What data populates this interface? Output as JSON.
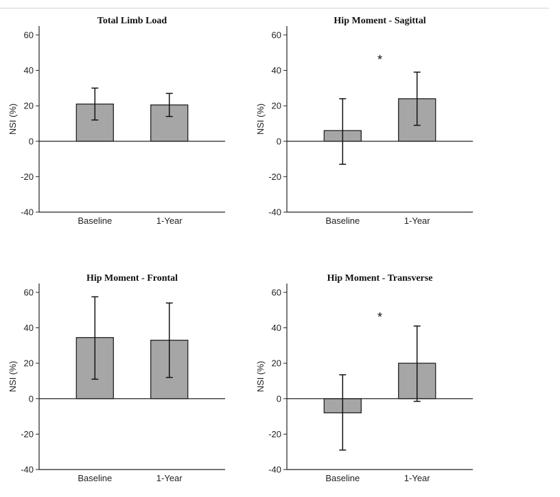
{
  "chart_data": [
    {
      "type": "bar",
      "title": "Total Limb Load",
      "ylabel": "NSI (%)",
      "xlabel": "",
      "categories": [
        "Baseline",
        "1-Year"
      ],
      "values": [
        21,
        20.5
      ],
      "error_low": [
        12,
        14
      ],
      "error_high": [
        30,
        27
      ],
      "ylim": [
        -40,
        65
      ],
      "yticks": [
        60,
        40,
        20,
        0,
        -20,
        -40
      ],
      "annotation": "",
      "colors": {
        "bar": "#a6a6a6",
        "edge": "#222222"
      }
    },
    {
      "type": "bar",
      "title": "Hip Moment - Sagittal",
      "ylabel": "NSI (%)",
      "xlabel": "",
      "categories": [
        "Baseline",
        "1-Year"
      ],
      "values": [
        6,
        24
      ],
      "error_low": [
        -13,
        9
      ],
      "error_high": [
        24,
        39
      ],
      "ylim": [
        -40,
        65
      ],
      "yticks": [
        60,
        40,
        20,
        0,
        -20,
        -40
      ],
      "annotation": "*",
      "annotation_y": 46,
      "colors": {
        "bar": "#a6a6a6",
        "edge": "#222222"
      }
    },
    {
      "type": "bar",
      "title": "Hip Moment - Frontal",
      "ylabel": "NSI (%)",
      "xlabel": "",
      "categories": [
        "Baseline",
        "1-Year"
      ],
      "values": [
        34.5,
        33
      ],
      "error_low": [
        11,
        12
      ],
      "error_high": [
        57.5,
        54
      ],
      "ylim": [
        -40,
        65
      ],
      "yticks": [
        60,
        40,
        20,
        0,
        -20,
        -40
      ],
      "annotation": "",
      "colors": {
        "bar": "#a6a6a6",
        "edge": "#222222"
      }
    },
    {
      "type": "bar",
      "title": "Hip Moment - Transverse",
      "ylabel": "NSI (%)",
      "xlabel": "",
      "categories": [
        "Baseline",
        "1-Year"
      ],
      "values": [
        -8,
        20
      ],
      "error_low": [
        -29,
        -1.5
      ],
      "error_high": [
        13.5,
        41
      ],
      "ylim": [
        -40,
        65
      ],
      "yticks": [
        60,
        40,
        20,
        0,
        -20,
        -40
      ],
      "annotation": "*",
      "annotation_y": 46,
      "colors": {
        "bar": "#a6a6a6",
        "edge": "#222222"
      }
    }
  ]
}
